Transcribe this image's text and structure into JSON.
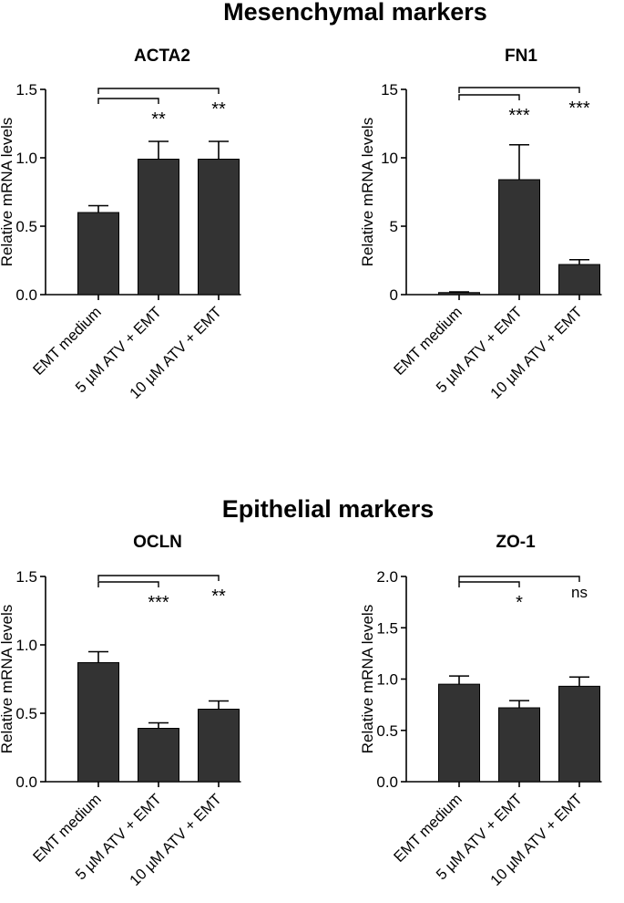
{
  "sections": [
    {
      "title": "Mesenchymal markers"
    },
    {
      "title": "Epithelial markers"
    }
  ],
  "chart_data": [
    {
      "type": "bar",
      "title": "ACTA2",
      "ylabel": "Relative mRNA levels",
      "categories": [
        "EMT medium",
        "5 µM ATV + EMT",
        "10 µM ATV + EMT"
      ],
      "values": [
        0.6,
        0.99,
        0.99
      ],
      "errors": [
        0.05,
        0.13,
        0.13
      ],
      "ylim": [
        0,
        1.5
      ],
      "yticks": [
        "0.0",
        "0.5",
        "1.0",
        "1.5"
      ],
      "ytick_values": [
        0,
        0.5,
        1.0,
        1.5
      ],
      "significance": [
        {
          "compare": [
            0,
            1
          ],
          "label": "**"
        },
        {
          "compare": [
            0,
            2
          ],
          "label": "**"
        }
      ]
    },
    {
      "type": "bar",
      "title": "FN1",
      "ylabel": "Relative mRNA levels",
      "categories": [
        "EMT medium",
        "5 µM ATV + EMT",
        "10 µM ATV + EMT"
      ],
      "values": [
        0.15,
        8.4,
        2.2
      ],
      "errors": [
        0.05,
        2.55,
        0.35
      ],
      "ylim": [
        0,
        15
      ],
      "yticks": [
        "0",
        "5",
        "10",
        "15"
      ],
      "ytick_values": [
        0,
        5,
        10,
        15
      ],
      "significance": [
        {
          "compare": [
            0,
            1
          ],
          "label": "***"
        },
        {
          "compare": [
            0,
            2
          ],
          "label": "***"
        }
      ]
    },
    {
      "type": "bar",
      "title": "OCLN",
      "ylabel": "Relative mRNA levels",
      "categories": [
        "EMT medium",
        "5 µM ATV + EMT",
        "10 µM ATV + EMT"
      ],
      "values": [
        0.87,
        0.39,
        0.53
      ],
      "errors": [
        0.08,
        0.04,
        0.06
      ],
      "ylim": [
        0,
        1.5
      ],
      "yticks": [
        "0.0",
        "0.5",
        "1.0",
        "1.5"
      ],
      "ytick_values": [
        0,
        0.5,
        1.0,
        1.5
      ],
      "significance": [
        {
          "compare": [
            0,
            1
          ],
          "label": "***"
        },
        {
          "compare": [
            0,
            2
          ],
          "label": "**"
        }
      ]
    },
    {
      "type": "bar",
      "title": "ZO-1",
      "ylabel": "Relative mRNA levels",
      "categories": [
        "EMT medium",
        "5 µM ATV + EMT",
        "10 µM ATV + EMT"
      ],
      "values": [
        0.95,
        0.72,
        0.93
      ],
      "errors": [
        0.08,
        0.07,
        0.09
      ],
      "ylim": [
        0,
        2.0
      ],
      "yticks": [
        "0.0",
        "0.5",
        "1.0",
        "1.5",
        "2.0"
      ],
      "ytick_values": [
        0,
        0.5,
        1.0,
        1.5,
        2.0
      ],
      "significance": [
        {
          "compare": [
            0,
            1
          ],
          "label": "*"
        },
        {
          "compare": [
            0,
            2
          ],
          "label": "ns"
        }
      ]
    }
  ],
  "colors": {
    "bar": "#333333",
    "axis": "#000000",
    "text": "#000000"
  }
}
